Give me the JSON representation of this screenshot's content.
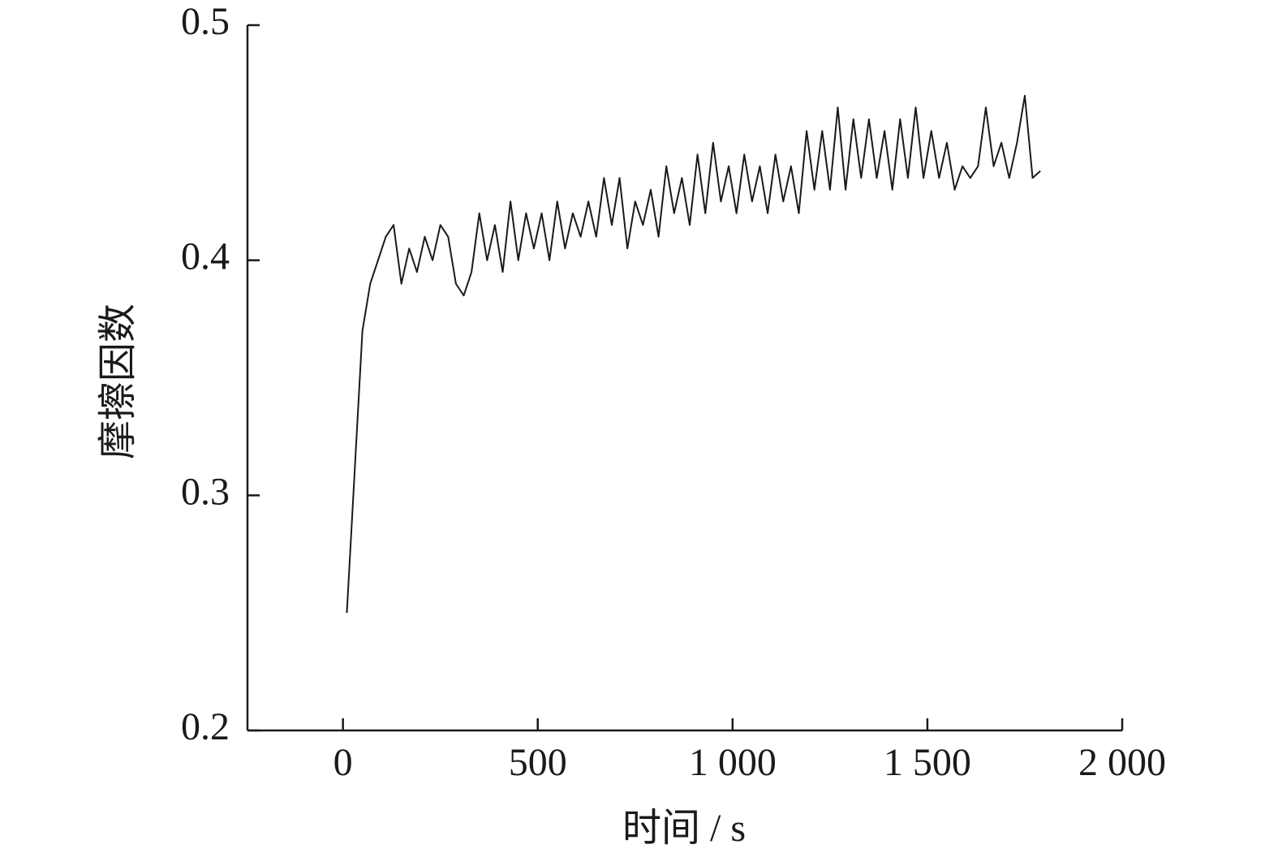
{
  "chart_data": {
    "type": "line",
    "xlabel": "时间 / s",
    "ylabel": "摩擦因数",
    "x": [
      10,
      30,
      50,
      70,
      90,
      110,
      130,
      150,
      170,
      190,
      210,
      230,
      250,
      270,
      290,
      310,
      330,
      350,
      370,
      390,
      410,
      430,
      450,
      470,
      490,
      510,
      530,
      550,
      570,
      590,
      610,
      630,
      650,
      670,
      690,
      710,
      730,
      750,
      770,
      790,
      810,
      830,
      850,
      870,
      890,
      910,
      930,
      950,
      970,
      990,
      1010,
      1030,
      1050,
      1070,
      1090,
      1110,
      1130,
      1150,
      1170,
      1190,
      1210,
      1230,
      1250,
      1270,
      1290,
      1310,
      1330,
      1350,
      1370,
      1390,
      1410,
      1430,
      1450,
      1470,
      1490,
      1510,
      1530,
      1550,
      1570,
      1590,
      1610,
      1630,
      1650,
      1670,
      1690,
      1710,
      1730,
      1750,
      1770,
      1790
    ],
    "series": [
      {
        "color": "#1a1a1a",
        "values": [
          0.25,
          0.31,
          0.37,
          0.39,
          0.4,
          0.41,
          0.415,
          0.39,
          0.405,
          0.395,
          0.41,
          0.4,
          0.415,
          0.41,
          0.39,
          0.385,
          0.395,
          0.42,
          0.4,
          0.415,
          0.395,
          0.425,
          0.4,
          0.42,
          0.405,
          0.42,
          0.4,
          0.425,
          0.405,
          0.42,
          0.41,
          0.425,
          0.41,
          0.435,
          0.415,
          0.435,
          0.405,
          0.425,
          0.415,
          0.43,
          0.41,
          0.44,
          0.42,
          0.435,
          0.415,
          0.445,
          0.42,
          0.45,
          0.425,
          0.44,
          0.42,
          0.445,
          0.425,
          0.44,
          0.42,
          0.445,
          0.425,
          0.44,
          0.42,
          0.455,
          0.43,
          0.455,
          0.43,
          0.465,
          0.43,
          0.46,
          0.435,
          0.46,
          0.435,
          0.455,
          0.43,
          0.46,
          0.435,
          0.465,
          0.435,
          0.455,
          0.435,
          0.45,
          0.43,
          0.44,
          0.435,
          0.44,
          0.465,
          0.44,
          0.45,
          0.435,
          0.45,
          0.47,
          0.435,
          0.438
        ]
      }
    ],
    "xlim": [
      -245,
      2000
    ],
    "xticks": [
      0,
      500,
      {
        "value": 1000,
        "label": "1 000"
      },
      {
        "value": 1500,
        "label": "1 500"
      },
      {
        "value": 2000,
        "label": "2 000"
      }
    ],
    "ylim": [
      0.2,
      0.5
    ],
    "yticks": [
      0.2,
      0.3,
      0.4,
      0.5
    ]
  }
}
